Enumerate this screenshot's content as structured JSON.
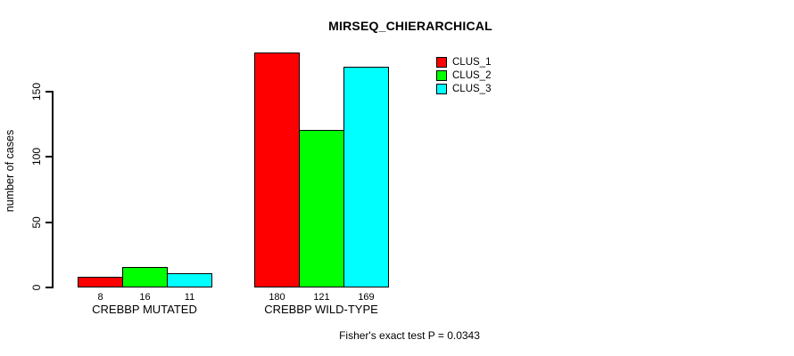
{
  "chart_data": {
    "type": "bar",
    "title": "MIRSEQ_CHIERARCHICAL",
    "ylabel": "number of cases",
    "xlabel": "",
    "categories": [
      "CREBBP MUTATED",
      "CREBBP WILD-TYPE"
    ],
    "series": [
      {
        "name": "CLUS_1",
        "color": "#ff0000",
        "values": [
          8,
          180
        ]
      },
      {
        "name": "CLUS_2",
        "color": "#00ff00",
        "values": [
          16,
          121
        ]
      },
      {
        "name": "CLUS_3",
        "color": "#00ffff",
        "values": [
          11,
          169
        ]
      }
    ],
    "bar_value_labels": [
      [
        "8",
        "16",
        "11"
      ],
      [
        "180",
        "121",
        "169"
      ]
    ],
    "yticks": [
      0,
      50,
      100,
      150
    ],
    "ylim": [
      0,
      187
    ],
    "grid": false,
    "legend_position": "top-right",
    "annotation": "Fisher's exact test P = 0.0343",
    "background": "#ffffff",
    "text_color": "#000000"
  }
}
